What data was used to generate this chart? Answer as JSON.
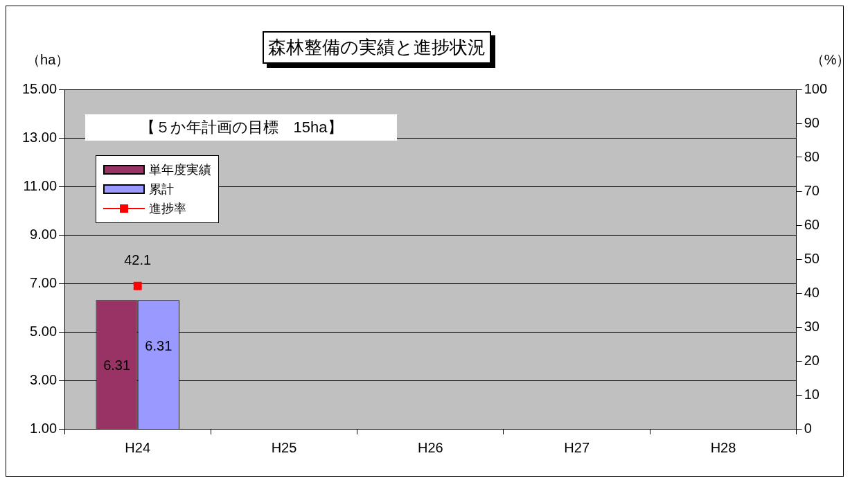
{
  "chart_data": {
    "type": "bar",
    "title": "森林整備の実績と進捗状況",
    "ylabel": "（ha）",
    "y2label": "（%）",
    "annotations": [
      "【５か年計画の目標　15ha】"
    ],
    "categories": [
      "H24",
      "H25",
      "H26",
      "H27",
      "H28"
    ],
    "series": [
      {
        "name": "単年度実績",
        "color": "#993366",
        "values": [
          6.31,
          null,
          null,
          null,
          null
        ]
      },
      {
        "name": "累計",
        "color": "#9999ff",
        "values": [
          6.31,
          null,
          null,
          null,
          null
        ]
      },
      {
        "name": "進捗率",
        "type": "line",
        "axis": "y2",
        "color": "#ff0000",
        "marker": "square",
        "values": [
          42.1,
          null,
          null,
          null,
          null
        ]
      }
    ],
    "ylim": [
      1,
      15
    ],
    "yticks": [
      {
        "value": 1,
        "label": "1.00"
      },
      {
        "value": 3,
        "label": "3.00"
      },
      {
        "value": 5,
        "label": "5.00"
      },
      {
        "value": 7,
        "label": "7.00"
      },
      {
        "value": 9,
        "label": "9.00"
      },
      {
        "value": 11,
        "label": "11.00"
      },
      {
        "value": 13,
        "label": "13.00"
      },
      {
        "value": 15,
        "label": "15.00"
      }
    ],
    "y2lim": [
      0,
      100
    ],
    "y2ticks": [
      0,
      10,
      20,
      30,
      40,
      50,
      60,
      70,
      80,
      90,
      100
    ],
    "grid": "y",
    "legend": "top left",
    "data_labels": true
  }
}
